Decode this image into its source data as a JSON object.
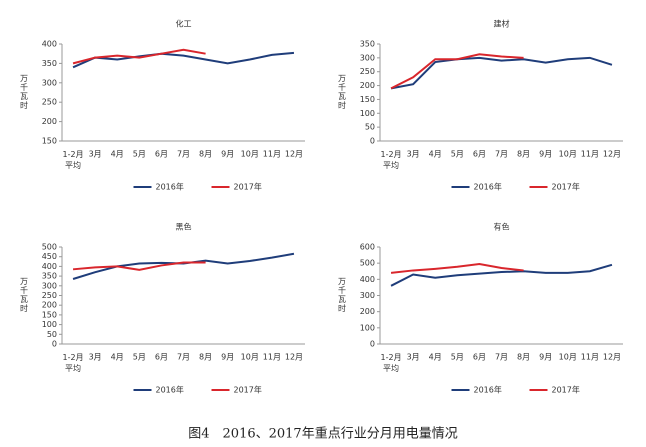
{
  "caption": "图4　2016、2017年重点行业分月用电量情况",
  "chart_data": [
    {
      "type": "line",
      "title": "化工",
      "y_label": "万千瓦时",
      "categories": [
        "1-2月\n平均",
        "3月",
        "4月",
        "5月",
        "6月",
        "7月",
        "8月",
        "9月",
        "10月",
        "11月",
        "12月"
      ],
      "series": [
        {
          "name": "2016年",
          "color": "#1f3d7a",
          "values": [
            340,
            365,
            360,
            368,
            375,
            370,
            360,
            350,
            360,
            372,
            377
          ]
        },
        {
          "name": "2017年",
          "color": "#d9262c",
          "values": [
            350,
            365,
            370,
            365,
            375,
            385,
            375,
            null,
            null,
            null,
            null
          ]
        }
      ],
      "ylim": [
        150,
        400
      ],
      "yticks": [
        150,
        200,
        250,
        300,
        350,
        400
      ],
      "legend": "bottom"
    },
    {
      "type": "line",
      "title": "建材",
      "y_label": "万千瓦时",
      "categories": [
        "1-2月\n平均",
        "3月",
        "4月",
        "5月",
        "6月",
        "7月",
        "8月",
        "9月",
        "10月",
        "11月",
        "12月"
      ],
      "series": [
        {
          "name": "2016年",
          "color": "#1f3d7a",
          "values": [
            190,
            205,
            285,
            295,
            300,
            290,
            295,
            283,
            295,
            300,
            275
          ]
        },
        {
          "name": "2017年",
          "color": "#d9262c",
          "values": [
            190,
            230,
            295,
            295,
            313,
            305,
            300,
            null,
            null,
            null,
            null
          ]
        }
      ],
      "ylim": [
        0,
        350
      ],
      "yticks": [
        0,
        50,
        100,
        150,
        200,
        250,
        300,
        350
      ],
      "legend": "bottom"
    },
    {
      "type": "line",
      "title": "黑色",
      "y_label": "万千瓦时",
      "categories": [
        "1-2月\n平均",
        "3月",
        "4月",
        "5月",
        "6月",
        "7月",
        "8月",
        "9月",
        "10月",
        "11月",
        "12月"
      ],
      "series": [
        {
          "name": "2016年",
          "color": "#1f3d7a",
          "values": [
            335,
            370,
            400,
            415,
            418,
            415,
            430,
            415,
            428,
            445,
            465
          ]
        },
        {
          "name": "2017年",
          "color": "#d9262c",
          "values": [
            385,
            395,
            400,
            382,
            405,
            420,
            420,
            null,
            null,
            null,
            null
          ]
        }
      ],
      "ylim": [
        0,
        500
      ],
      "yticks": [
        0,
        50,
        100,
        150,
        200,
        250,
        300,
        350,
        400,
        450,
        500
      ],
      "legend": "bottom"
    },
    {
      "type": "line",
      "title": "有色",
      "y_label": "万千瓦时",
      "categories": [
        "1-2月\n平均",
        "3月",
        "4月",
        "5月",
        "6月",
        "7月",
        "8月",
        "9月",
        "10月",
        "11月",
        "12月"
      ],
      "series": [
        {
          "name": "2016年",
          "color": "#1f3d7a",
          "values": [
            360,
            430,
            410,
            425,
            435,
            445,
            450,
            440,
            440,
            450,
            490
          ]
        },
        {
          "name": "2017年",
          "color": "#d9262c",
          "values": [
            440,
            455,
            465,
            478,
            495,
            470,
            455,
            null,
            null,
            null,
            null
          ]
        }
      ],
      "ylim": [
        0,
        600
      ],
      "yticks": [
        0,
        100,
        200,
        300,
        400,
        500,
        600
      ],
      "legend": "bottom"
    }
  ]
}
